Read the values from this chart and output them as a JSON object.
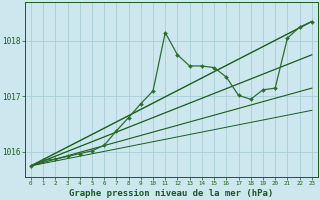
{
  "background_color": "#cce8ee",
  "grid_color": "#aacdd5",
  "line_color_dark": "#1a5c1a",
  "line_color_main": "#2d6e2d",
  "xlabel": "Graphe pression niveau de la mer (hPa)",
  "xlabel_fontsize": 6.5,
  "xlabel_color": "#1a5c1a",
  "xlim": [
    -0.5,
    23.5
  ],
  "ylim": [
    1015.55,
    1018.7
  ],
  "yticks": [
    1016,
    1017,
    1018
  ],
  "xticks": [
    0,
    1,
    2,
    3,
    4,
    5,
    6,
    7,
    8,
    9,
    10,
    11,
    12,
    13,
    14,
    15,
    16,
    17,
    18,
    19,
    20,
    21,
    22,
    23
  ],
  "main_series": {
    "x": [
      0,
      1,
      2,
      3,
      4,
      5,
      6,
      7,
      8,
      9,
      10,
      11,
      12,
      13,
      14,
      15,
      16,
      17,
      18,
      19,
      20,
      21,
      22,
      23
    ],
    "y": [
      1015.75,
      1015.85,
      1015.87,
      1015.92,
      1015.97,
      1016.02,
      1016.12,
      1016.38,
      1016.62,
      1016.87,
      1017.1,
      1018.15,
      1017.75,
      1017.55,
      1017.55,
      1017.52,
      1017.35,
      1017.02,
      1016.95,
      1017.12,
      1017.15,
      1018.05,
      1018.25,
      1018.35
    ]
  },
  "ref_lines": [
    {
      "x": [
        0,
        23
      ],
      "y": [
        1015.75,
        1018.35
      ]
    },
    {
      "x": [
        0,
        23
      ],
      "y": [
        1015.75,
        1017.75
      ]
    },
    {
      "x": [
        0,
        23
      ],
      "y": [
        1015.75,
        1017.15
      ]
    },
    {
      "x": [
        0,
        23
      ],
      "y": [
        1015.75,
        1016.75
      ]
    }
  ]
}
